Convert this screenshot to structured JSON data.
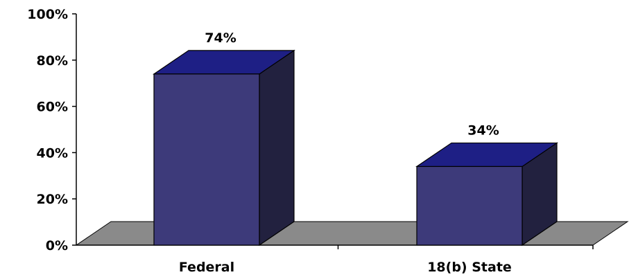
{
  "chart_data": {
    "type": "bar",
    "title": "",
    "xlabel": "",
    "ylabel": "",
    "categories": [
      "Federal",
      "18(b) State"
    ],
    "values": [
      74,
      34
    ],
    "data_labels": [
      "74%",
      "34%"
    ],
    "ylim": [
      0,
      100
    ],
    "y_ticks": [
      0,
      20,
      40,
      60,
      80,
      100
    ],
    "y_tick_labels": [
      "0%",
      "20%",
      "40%",
      "60%",
      "80%",
      "100%"
    ],
    "style": "3d-column",
    "grid": false,
    "legend": "none",
    "colors": {
      "bar_front": "#3d3a7a",
      "bar_top": "#1e1f85",
      "bar_side": "#22213f",
      "floor": "#8a8a8a",
      "outline": "#000000"
    }
  }
}
